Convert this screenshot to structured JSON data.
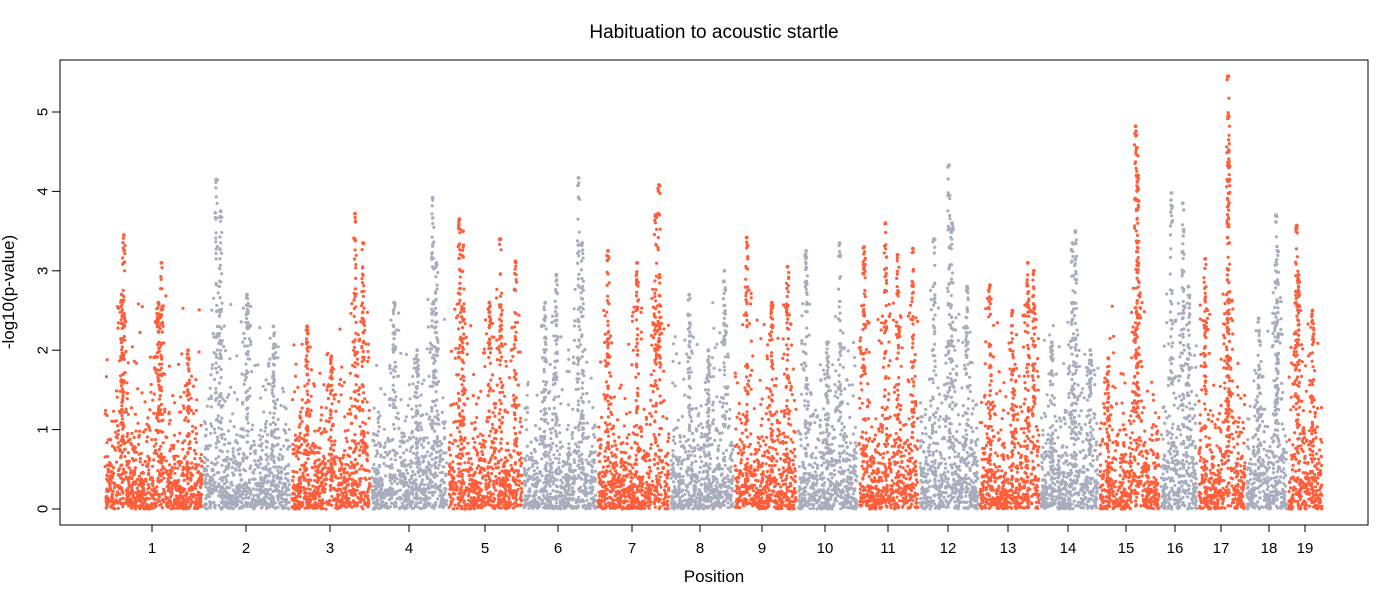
{
  "chart_data": {
    "type": "scatter",
    "title": "Habituation to acoustic startle",
    "xlabel": "Position",
    "ylabel": "-log10(p-value)",
    "ylim": [
      0,
      5.6
    ],
    "yticks": [
      0,
      1,
      2,
      3,
      4,
      5
    ],
    "grid": false,
    "legend": "none",
    "colors": {
      "odd": "#FF5E3A",
      "even": "#A8ADBD"
    },
    "chromosomes": [
      {
        "label": "1",
        "peaks": [
          [
            0.18,
            2.7
          ],
          [
            0.2,
            3.45
          ],
          [
            0.55,
            2.6
          ],
          [
            0.58,
            3.1
          ],
          [
            0.85,
            2.0
          ]
        ]
      },
      {
        "label": "2",
        "peaks": [
          [
            0.15,
            4.15
          ],
          [
            0.2,
            3.75
          ],
          [
            0.5,
            2.7
          ],
          [
            0.8,
            2.3
          ]
        ]
      },
      {
        "label": "3",
        "peaks": [
          [
            0.2,
            2.3
          ],
          [
            0.8,
            3.72
          ],
          [
            0.9,
            3.35
          ],
          [
            0.5,
            1.9
          ]
        ]
      },
      {
        "label": "4",
        "peaks": [
          [
            0.3,
            2.6
          ],
          [
            0.8,
            3.92
          ],
          [
            0.85,
            3.1
          ],
          [
            0.6,
            2.0
          ]
        ]
      },
      {
        "label": "5",
        "peaks": [
          [
            0.15,
            3.65
          ],
          [
            0.2,
            3.5
          ],
          [
            0.55,
            2.6
          ],
          [
            0.9,
            3.12
          ],
          [
            0.7,
            3.4
          ]
        ]
      },
      {
        "label": "6",
        "peaks": [
          [
            0.45,
            2.95
          ],
          [
            0.75,
            4.17
          ],
          [
            0.8,
            3.35
          ],
          [
            0.3,
            2.6
          ]
        ]
      },
      {
        "label": "7",
        "peaks": [
          [
            0.15,
            3.25
          ],
          [
            0.55,
            3.1
          ],
          [
            0.8,
            3.7
          ],
          [
            0.85,
            4.08
          ]
        ]
      },
      {
        "label": "8",
        "peaks": [
          [
            0.3,
            2.7
          ],
          [
            0.6,
            2.0
          ],
          [
            0.85,
            3.0
          ]
        ]
      },
      {
        "label": "9",
        "peaks": [
          [
            0.2,
            3.42
          ],
          [
            0.6,
            2.6
          ],
          [
            0.85,
            3.05
          ]
        ]
      },
      {
        "label": "10",
        "peaks": [
          [
            0.15,
            3.25
          ],
          [
            0.7,
            3.35
          ],
          [
            0.5,
            2.1
          ]
        ]
      },
      {
        "label": "11",
        "peaks": [
          [
            0.1,
            3.3
          ],
          [
            0.45,
            3.6
          ],
          [
            0.65,
            3.2
          ],
          [
            0.9,
            3.28
          ]
        ]
      },
      {
        "label": "12",
        "peaks": [
          [
            0.25,
            3.4
          ],
          [
            0.5,
            4.33
          ],
          [
            0.55,
            3.6
          ],
          [
            0.8,
            2.8
          ]
        ]
      },
      {
        "label": "13",
        "peaks": [
          [
            0.18,
            2.82
          ],
          [
            0.55,
            2.5
          ],
          [
            0.8,
            3.1
          ],
          [
            0.9,
            3.0
          ]
        ]
      },
      {
        "label": "14",
        "peaks": [
          [
            0.2,
            2.1
          ],
          [
            0.55,
            3.35
          ],
          [
            0.6,
            3.5
          ],
          [
            0.85,
            2.0
          ]
        ]
      },
      {
        "label": "15",
        "peaks": [
          [
            0.6,
            4.82
          ],
          [
            0.62,
            4.55
          ],
          [
            0.64,
            4.2
          ],
          [
            0.15,
            1.9
          ]
        ]
      },
      {
        "label": "16",
        "peaks": [
          [
            0.3,
            3.98
          ],
          [
            0.6,
            3.85
          ],
          [
            0.75,
            2.8
          ]
        ]
      },
      {
        "label": "17",
        "peaks": [
          [
            0.15,
            3.15
          ],
          [
            0.62,
            5.45
          ],
          [
            0.63,
            4.95
          ],
          [
            0.64,
            4.5
          ]
        ]
      },
      {
        "label": "18",
        "peaks": [
          [
            0.3,
            2.4
          ],
          [
            0.72,
            3.7
          ],
          [
            0.75,
            3.25
          ]
        ]
      },
      {
        "label": "19",
        "peaks": [
          [
            0.25,
            3.57
          ],
          [
            0.3,
            2.95
          ],
          [
            0.7,
            2.5
          ]
        ]
      }
    ]
  }
}
